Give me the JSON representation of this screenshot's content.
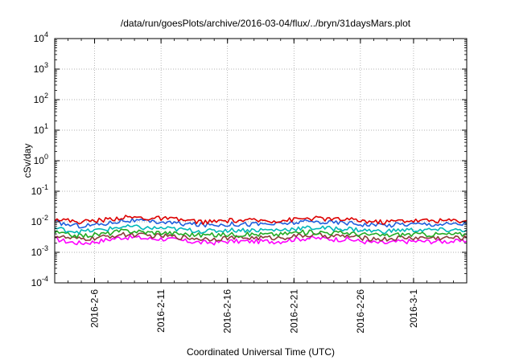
{
  "chart_data": {
    "type": "line",
    "title": "/data/run/goesPlots/archive/2016-03-04/flux/../bryn/31daysMars.plot",
    "xlabel": "Coordinated Universal Time (UTC)",
    "ylabel": "cSv/day",
    "y_scale": "log",
    "ylim": [
      0.0001,
      10000
    ],
    "xlim": [
      "2016-02-03",
      "2016-03-05"
    ],
    "grid": true,
    "y_ticks": [
      {
        "mantissa": "10",
        "exp": "-4",
        "value": 0.0001
      },
      {
        "mantissa": "10",
        "exp": "-3",
        "value": 0.001
      },
      {
        "mantissa": "10",
        "exp": "-2",
        "value": 0.01
      },
      {
        "mantissa": "10",
        "exp": "-1",
        "value": 0.1
      },
      {
        "mantissa": "10",
        "exp": "0",
        "value": 1
      },
      {
        "mantissa": "10",
        "exp": "1",
        "value": 10
      },
      {
        "mantissa": "10",
        "exp": "2",
        "value": 100
      },
      {
        "mantissa": "10",
        "exp": "3",
        "value": 1000
      },
      {
        "mantissa": "10",
        "exp": "4",
        "value": 10000
      }
    ],
    "x_ticks": [
      {
        "label": "2016-2-6",
        "date": "2016-02-06"
      },
      {
        "label": "2016-2-11",
        "date": "2016-02-11"
      },
      {
        "label": "2016-2-16",
        "date": "2016-02-16"
      },
      {
        "label": "2016-2-21",
        "date": "2016-02-21"
      },
      {
        "label": "2016-2-26",
        "date": "2016-02-26"
      },
      {
        "label": "2016-3-1",
        "date": "2016-03-01"
      }
    ],
    "x": [
      "2016-02-03",
      "2016-02-04",
      "2016-02-05",
      "2016-02-06",
      "2016-02-07",
      "2016-02-08",
      "2016-02-09",
      "2016-02-10",
      "2016-02-11",
      "2016-02-12",
      "2016-02-13",
      "2016-02-14",
      "2016-02-15",
      "2016-02-16",
      "2016-02-17",
      "2016-02-18",
      "2016-02-19",
      "2016-02-20",
      "2016-02-21",
      "2016-02-22",
      "2016-02-23",
      "2016-02-24",
      "2016-02-25",
      "2016-02-26",
      "2016-02-27",
      "2016-02-28",
      "2016-02-29",
      "2016-03-01",
      "2016-03-02",
      "2016-03-03",
      "2016-03-04",
      "2016-03-05"
    ],
    "series": [
      {
        "color": "#dd0000",
        "values": [
          0.013,
          0.011,
          0.01,
          0.011,
          0.012,
          0.014,
          0.014,
          0.013,
          0.013,
          0.012,
          0.011,
          0.01,
          0.01,
          0.011,
          0.011,
          0.011,
          0.011,
          0.011,
          0.012,
          0.013,
          0.013,
          0.012,
          0.012,
          0.011,
          0.01,
          0.01,
          0.011,
          0.011,
          0.011,
          0.011,
          0.011,
          0.011
        ]
      },
      {
        "color": "#1f5fdd",
        "values": [
          0.01,
          0.008,
          0.0075,
          0.008,
          0.009,
          0.011,
          0.011,
          0.01,
          0.01,
          0.009,
          0.0085,
          0.008,
          0.008,
          0.0085,
          0.0085,
          0.0085,
          0.0085,
          0.0085,
          0.0095,
          0.01,
          0.01,
          0.0095,
          0.0095,
          0.0085,
          0.008,
          0.0078,
          0.0085,
          0.0085,
          0.0085,
          0.0085,
          0.0085,
          0.0085
        ]
      },
      {
        "color": "#00b8b8",
        "values": [
          0.0062,
          0.0052,
          0.0048,
          0.0052,
          0.0058,
          0.0068,
          0.0068,
          0.0062,
          0.0062,
          0.0058,
          0.0054,
          0.005,
          0.005,
          0.0054,
          0.0054,
          0.0054,
          0.0054,
          0.0054,
          0.006,
          0.0063,
          0.0063,
          0.006,
          0.006,
          0.0054,
          0.005,
          0.0049,
          0.0054,
          0.0054,
          0.0054,
          0.0054,
          0.0054,
          0.0054
        ]
      },
      {
        "color": "#22aa22",
        "values": [
          0.0045,
          0.0038,
          0.0035,
          0.0038,
          0.0042,
          0.005,
          0.005,
          0.0045,
          0.0045,
          0.0042,
          0.0039,
          0.0037,
          0.0037,
          0.0039,
          0.0039,
          0.0039,
          0.0039,
          0.0039,
          0.0044,
          0.0046,
          0.0046,
          0.0044,
          0.0044,
          0.0039,
          0.0037,
          0.0036,
          0.0039,
          0.0039,
          0.0039,
          0.0039,
          0.0039,
          0.0039
        ]
      },
      {
        "color": "#8b3a3a",
        "values": [
          0.0035,
          0.0029,
          0.0027,
          0.0029,
          0.0033,
          0.0038,
          0.0038,
          0.0035,
          0.0035,
          0.0033,
          0.003,
          0.0028,
          0.0028,
          0.003,
          0.003,
          0.003,
          0.003,
          0.003,
          0.0034,
          0.0036,
          0.0036,
          0.0034,
          0.0034,
          0.003,
          0.0028,
          0.0027,
          0.003,
          0.003,
          0.003,
          0.003,
          0.003,
          0.003
        ]
      },
      {
        "color": "#ff00ff",
        "values": [
          0.0028,
          0.0022,
          0.002,
          0.0022,
          0.0026,
          0.0031,
          0.0031,
          0.0028,
          0.0028,
          0.0026,
          0.0023,
          0.0021,
          0.0021,
          0.0023,
          0.0023,
          0.0023,
          0.0023,
          0.0023,
          0.0027,
          0.0029,
          0.0029,
          0.0027,
          0.0027,
          0.0023,
          0.0021,
          0.002,
          0.0023,
          0.0023,
          0.0023,
          0.0023,
          0.0023,
          0.0023
        ]
      }
    ]
  }
}
